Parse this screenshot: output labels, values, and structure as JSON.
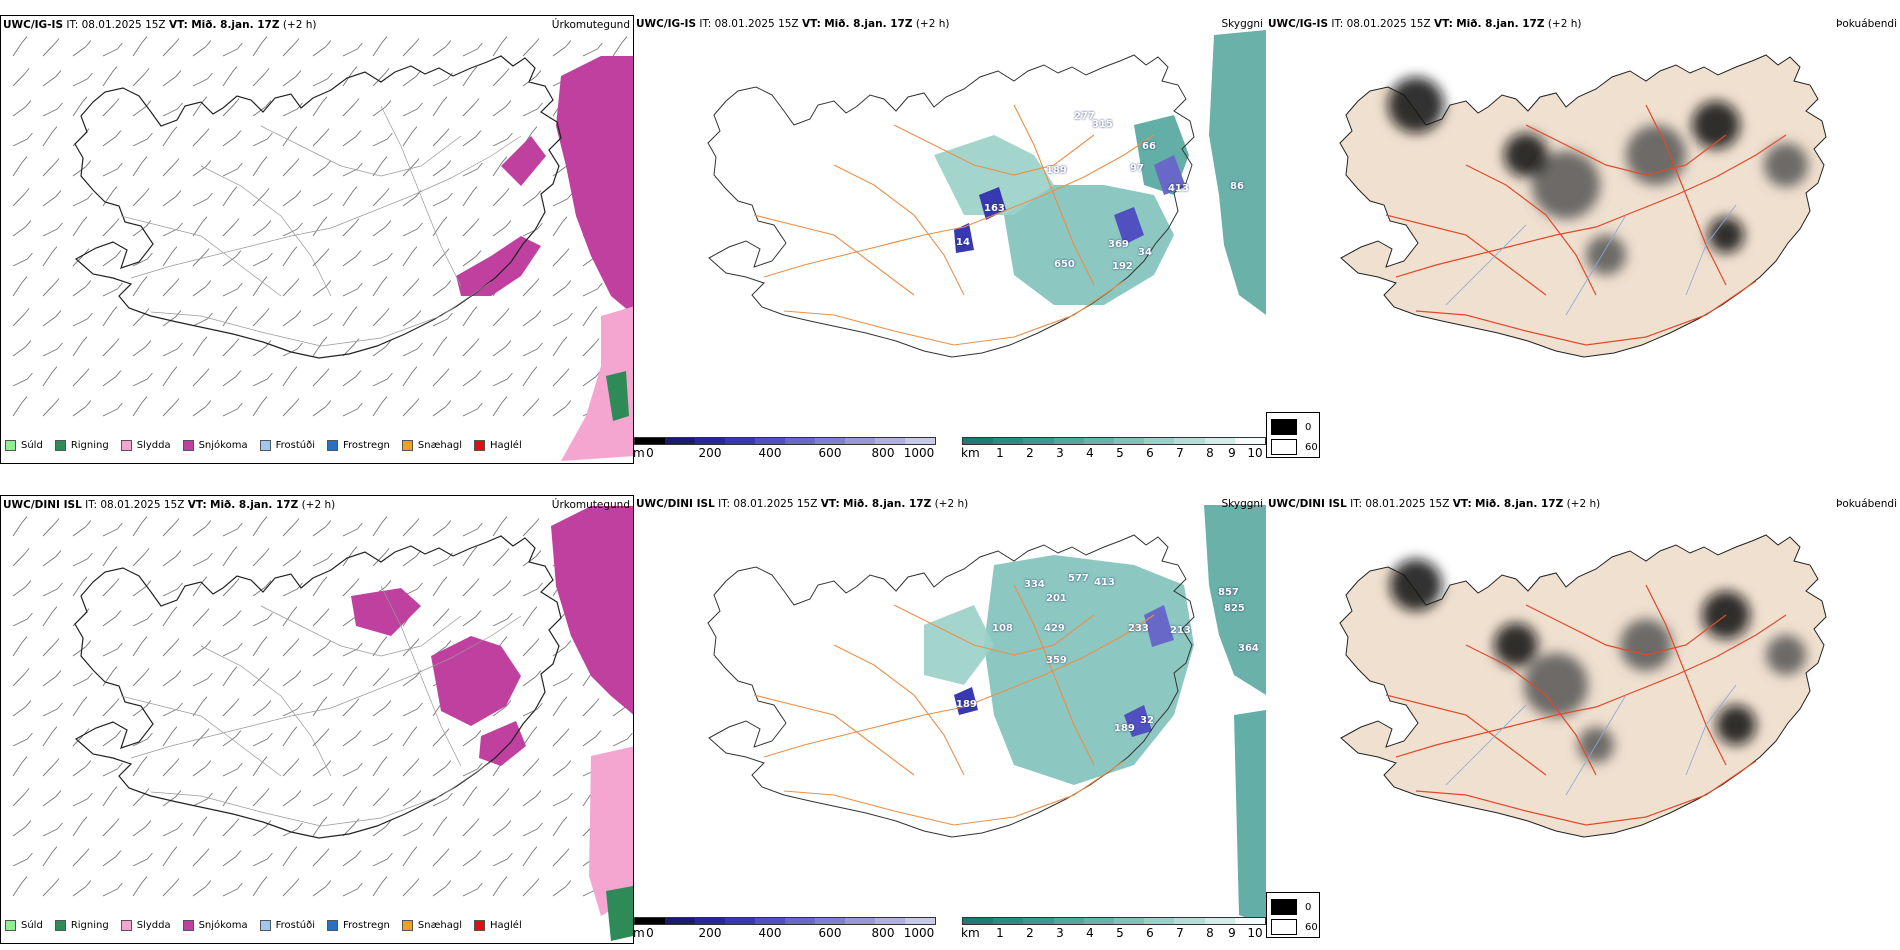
{
  "rows": [
    {
      "model": "UWC/IG-IS",
      "it_label": "IT:",
      "it_value": "08.01.2025 15Z",
      "vt_label": "VT:",
      "vt_value": "Mið. 8.jan. 17Z",
      "lead": "(+2 h)",
      "numbers": [
        "277",
        "315",
        "189",
        "66",
        "97",
        "413",
        "163",
        "14",
        "650",
        "369",
        "192",
        "34",
        "86"
      ]
    },
    {
      "model": "UWC/DINI ISL",
      "it_label": "IT:",
      "it_value": "08.01.2025 15Z",
      "vt_label": "VT:",
      "vt_value": "Mið. 8.jan. 17Z",
      "lead": "(+2 h)",
      "numbers": [
        "334",
        "577",
        "413",
        "201",
        "429",
        "233",
        "213",
        "359",
        "189",
        "32",
        "189",
        "108",
        "857",
        "825",
        "364"
      ]
    }
  ],
  "panel_titles": {
    "precip": "Úrkomutegund",
    "cloud": "Skyggni",
    "fog": "Þokuábendi"
  },
  "precip_legend": [
    {
      "label": "Súld",
      "color": "#90ee90"
    },
    {
      "label": "Rigning",
      "color": "#2e8b57"
    },
    {
      "label": "Slydda",
      "color": "#f4a6d0"
    },
    {
      "label": "Snjókoma",
      "color": "#c040a0"
    },
    {
      "label": "Frostúði",
      "color": "#9ec8f0"
    },
    {
      "label": "Frostregn",
      "color": "#2a70c0"
    },
    {
      "label": "Snæhagl",
      "color": "#f0a020"
    },
    {
      "label": "Haglél",
      "color": "#e01010"
    }
  ],
  "cloud_base": {
    "unit": "m",
    "ticks": [
      "0",
      "200",
      "400",
      "600",
      "800",
      "1000"
    ],
    "colors": [
      "#000000",
      "#1a1a6e",
      "#28289a",
      "#3838b0",
      "#5050c0",
      "#6868c8",
      "#8080d0",
      "#9898d8",
      "#b0b0e0",
      "#c8c8e8"
    ]
  },
  "visibility": {
    "unit": "km",
    "ticks": [
      "1",
      "2",
      "3",
      "4",
      "5",
      "6",
      "7",
      "8",
      "9",
      "10"
    ],
    "colors": [
      "#1e7a72",
      "#2c8a82",
      "#3e9890",
      "#52a69e",
      "#68b4ac",
      "#80c2ba",
      "#9ad0c8",
      "#b6ded8",
      "#d2ece8",
      "#f4fbfa"
    ]
  },
  "fog_legend": {
    "high": "0",
    "low": "60",
    "high_color": "#000000",
    "low_color": "#ffffff"
  }
}
